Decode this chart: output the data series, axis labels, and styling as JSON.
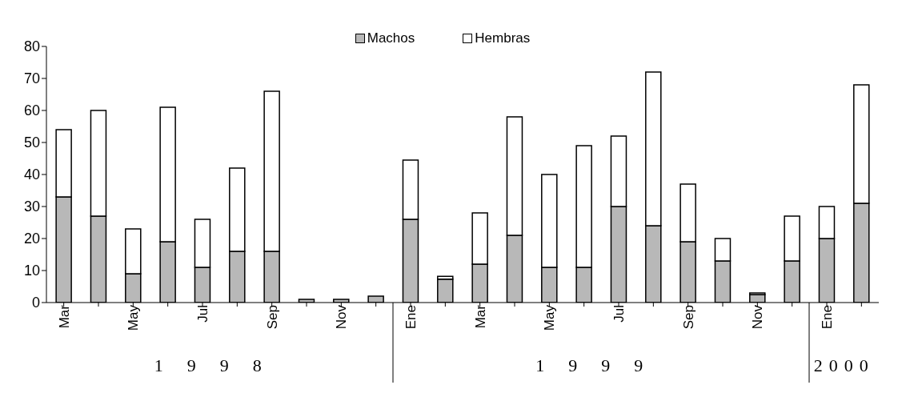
{
  "chart_data": {
    "type": "bar",
    "stacked": true,
    "categories": [
      "Mar",
      null,
      "May",
      null,
      "Jul",
      null,
      "Sep",
      null,
      "Nov",
      null,
      "Ene",
      null,
      "Mar",
      null,
      "May",
      null,
      "Jul",
      null,
      "Sep",
      null,
      "Nov",
      null,
      "Ene",
      null
    ],
    "series": [
      {
        "name": "Machos",
        "color": "#b8b8b8",
        "values": [
          33,
          27,
          9,
          19,
          11,
          16,
          16,
          1,
          1,
          2,
          26,
          7.3,
          12,
          21,
          11,
          11,
          30,
          24,
          19,
          13,
          2.5,
          13,
          20,
          31
        ]
      },
      {
        "name": "Hembras",
        "color": "#ffffff",
        "values": [
          21,
          33,
          14,
          42,
          15,
          26,
          50,
          0,
          0,
          0,
          18.5,
          0.9,
          16,
          37,
          29,
          38,
          22,
          48,
          18,
          7,
          0.5,
          14,
          10,
          37
        ]
      }
    ],
    "ylim": [
      0,
      80
    ],
    "yticks": [
      0,
      10,
      20,
      30,
      40,
      50,
      60,
      70,
      80
    ],
    "legend": "top",
    "annotations": [
      "1998",
      "1999",
      "2000"
    ]
  }
}
